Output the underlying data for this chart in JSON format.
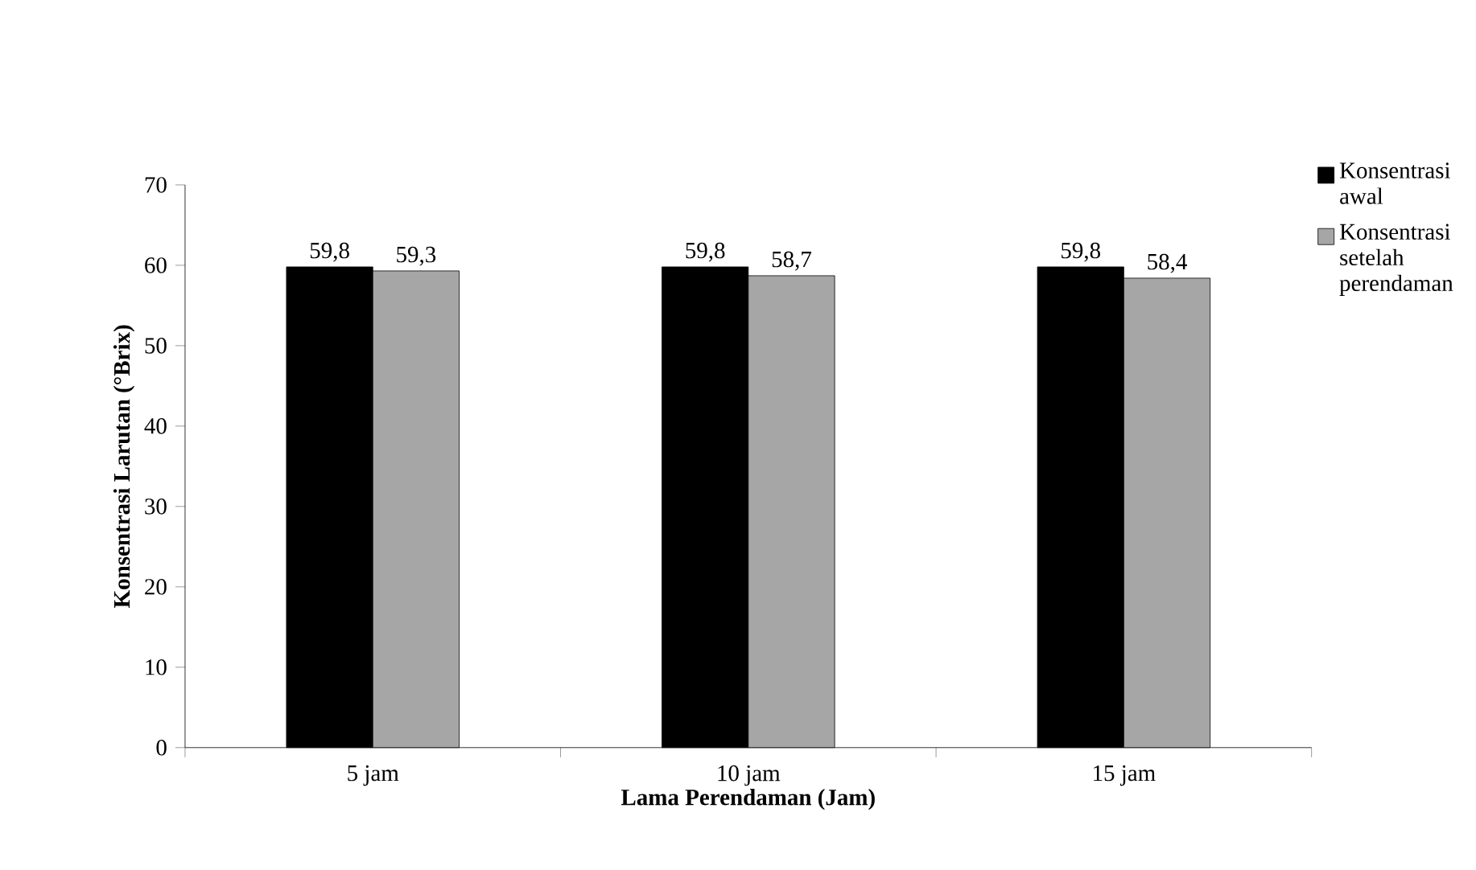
{
  "chart_data": {
    "type": "bar",
    "xlabel": "Lama Perendaman (Jam)",
    "ylabel": "Konsentrasi Larutan (°Brix)",
    "categories": [
      "5 jam",
      "10 jam",
      "15 jam"
    ],
    "series": [
      {
        "name": "Konsentrasi awal",
        "color": "#000000",
        "values": [
          59.8,
          59.8,
          59.8
        ],
        "value_labels": [
          "59,8",
          "59,8",
          "59,8"
        ]
      },
      {
        "name": "Konsentrasi setelah perendaman",
        "color": "#a6a6a6",
        "values": [
          59.3,
          58.7,
          58.4
        ],
        "value_labels": [
          "59,3",
          "58,7",
          "58,4"
        ]
      }
    ],
    "ylim": [
      0,
      70
    ],
    "yticks": [
      0,
      10,
      20,
      30,
      40,
      50,
      60,
      70
    ],
    "legend": "right"
  }
}
